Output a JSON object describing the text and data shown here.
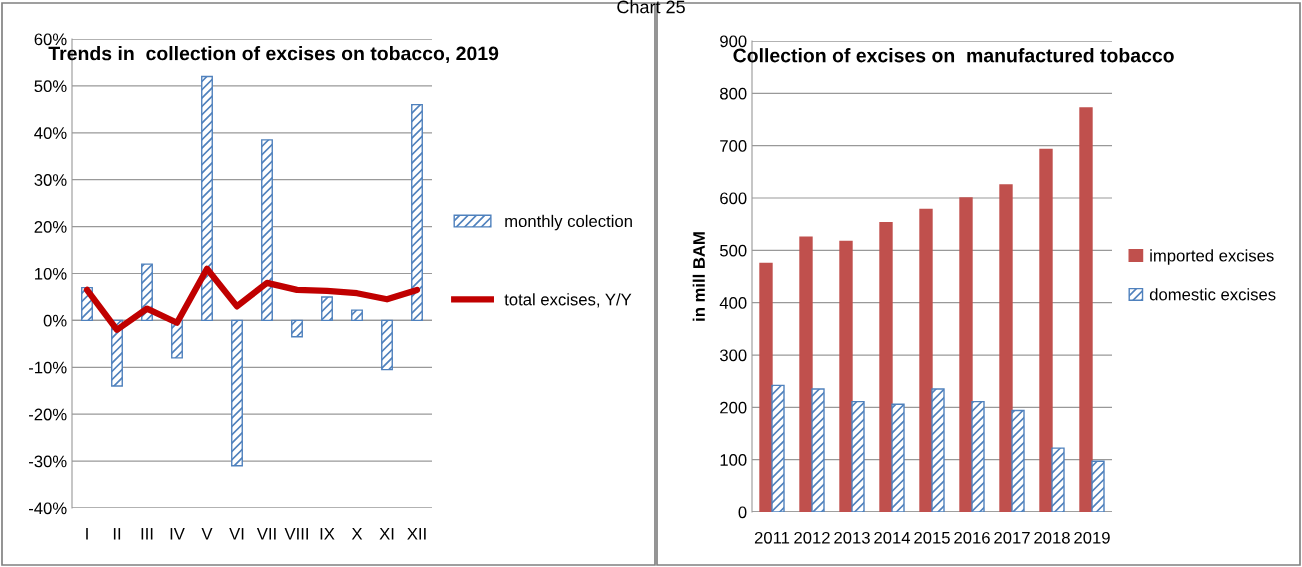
{
  "chart_data": [
    {
      "type": "bar",
      "title": "Trends in  collection of excises on tobacco, 2019",
      "annotations": [
        "Chart 25"
      ],
      "categories": [
        "I",
        "II",
        "III",
        "IV",
        "V",
        "VI",
        "VII",
        "VIII",
        "IX",
        "X",
        "XI",
        "XII"
      ],
      "series": [
        {
          "name": "monthly colection",
          "type": "bar",
          "color": "#4f81bd",
          "values": [
            7,
            -14,
            12,
            -8,
            52,
            -31,
            38.5,
            -3.5,
            5,
            2.2,
            -10.5,
            46
          ]
        },
        {
          "name": "total excises, Y/Y",
          "type": "line",
          "color": "#c00000",
          "values": [
            6.5,
            -2,
            2.5,
            -0.5,
            11,
            3,
            8,
            6.5,
            6.3,
            5.8,
            4.5,
            6.5
          ]
        }
      ],
      "ylim": [
        -40,
        60
      ],
      "yticks": [
        {
          "value": -40,
          "label": "-40%"
        },
        {
          "value": -30,
          "label": "-30%"
        },
        {
          "value": -20,
          "label": "-20%"
        },
        {
          "value": -10,
          "label": "-10%"
        },
        {
          "value": 0,
          "label": "0%"
        },
        {
          "value": 10,
          "label": "10%"
        },
        {
          "value": 20,
          "label": "20%"
        },
        {
          "value": 30,
          "label": "30%"
        },
        {
          "value": 40,
          "label": "40%"
        },
        {
          "value": 50,
          "label": "50%"
        },
        {
          "value": 60,
          "label": "60%"
        }
      ],
      "grid": "y",
      "legend": "right",
      "marker": "none",
      "line_style": "solid"
    },
    {
      "type": "bar",
      "title": "Collection of excises on  manufactured tobacco",
      "ylabel": "in mill BAM",
      "categories": [
        "2011",
        "2012",
        "2013",
        "2014",
        "2015",
        "2016",
        "2017",
        "2018",
        "2019"
      ],
      "series": [
        {
          "name": "imported excises",
          "color": "#c0504d",
          "values": [
            475,
            525,
            517,
            553,
            578,
            600,
            625,
            693,
            772
          ]
        },
        {
          "name": "domestic excises",
          "color": "#4f81bd",
          "values": [
            242,
            235,
            211,
            206,
            235,
            211,
            194,
            122,
            97
          ]
        }
      ],
      "ylim": [
        0,
        900
      ],
      "yticks": [
        0,
        100,
        200,
        300,
        400,
        500,
        600,
        700,
        800,
        900
      ],
      "grid": "y",
      "legend": "right"
    }
  ]
}
